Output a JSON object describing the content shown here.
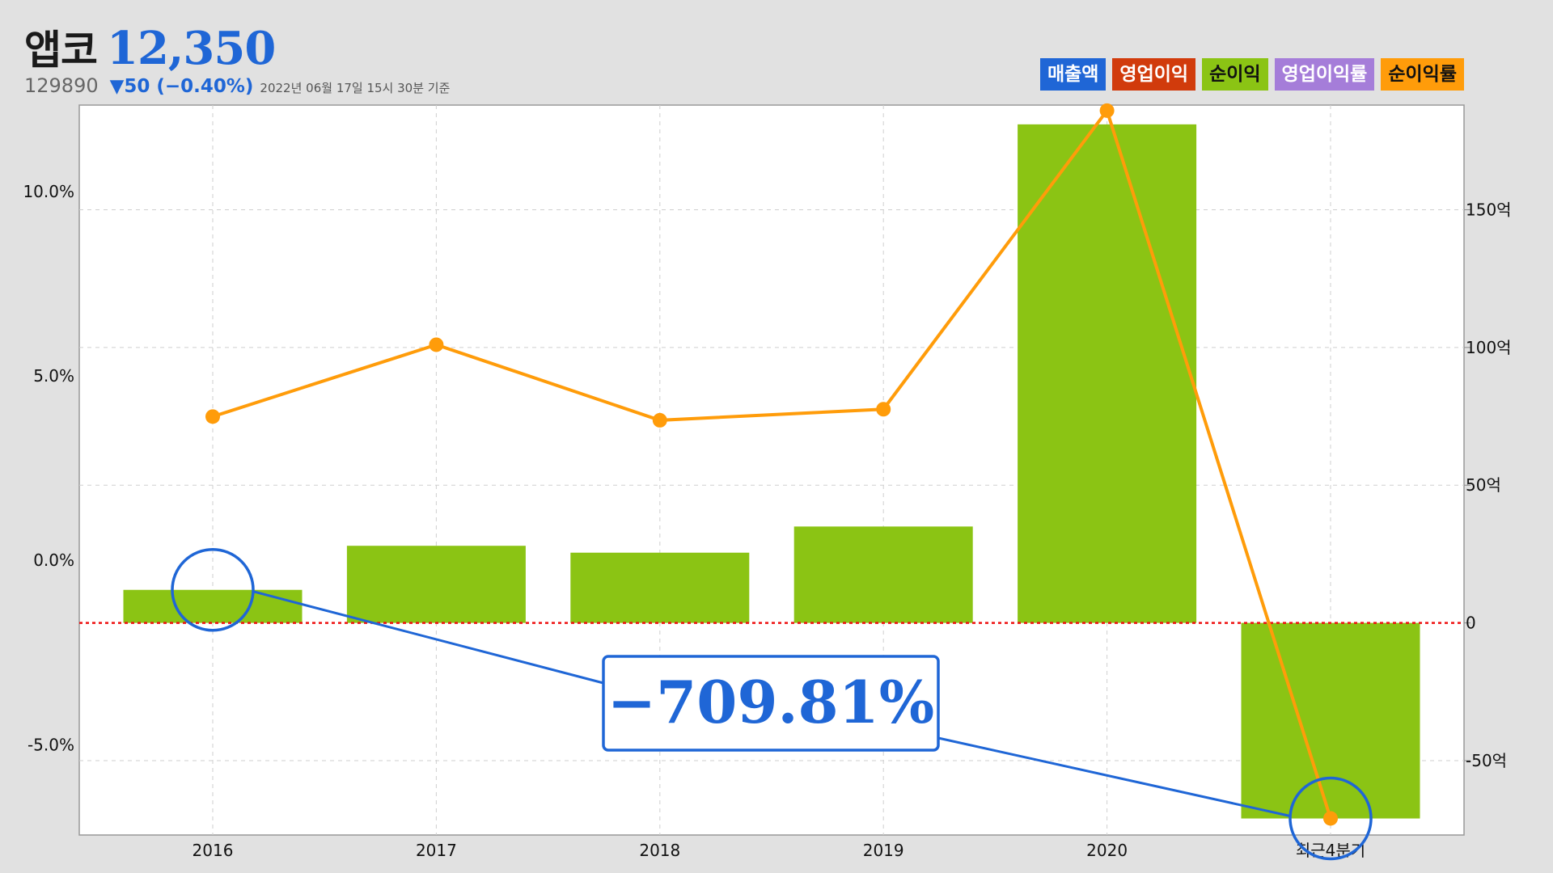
{
  "header": {
    "name": "앱코",
    "price": "12,350",
    "code": "129890",
    "change": "▼50 (−0.40%)",
    "asof": "2022년 06월 17일 15시 30분 기준"
  },
  "legend": [
    {
      "label": "매출액",
      "bg": "#1f66d6",
      "fg": "#ffffff"
    },
    {
      "label": "영업이익",
      "bg": "#d13b0c",
      "fg": "#ffffff"
    },
    {
      "label": "순이익",
      "bg": "#8bc414",
      "fg": "#111111"
    },
    {
      "label": "영업이익률",
      "bg": "#a57dd9",
      "fg": "#ffffff"
    },
    {
      "label": "순이익률",
      "bg": "#ff9c0a",
      "fg": "#111111"
    }
  ],
  "colors": {
    "bar": "#8bc414",
    "line": "#ff9c0a",
    "zero_line": "#ee1111",
    "highlight": "#1f66d6"
  },
  "chart_data": {
    "type": "bar",
    "categories": [
      "2016",
      "2017",
      "2018",
      "2019",
      "2020",
      "최근4분기"
    ],
    "series": [
      {
        "values": [
          12,
          28,
          25.5,
          35,
          181,
          -71
        ]
      },
      {
        "values": [
          3.9,
          5.85,
          3.8,
          4.1,
          12.2,
          -7.0
        ]
      }
    ],
    "left_axis": {
      "ticks": [
        "10.0%",
        "5.0%",
        "0.0%",
        "-5.0%"
      ],
      "tick_values": [
        10,
        5,
        0,
        -5
      ],
      "range": [
        -7.45,
        12.35
      ]
    },
    "right_axis": {
      "ticks": [
        "150억",
        "100억",
        "50억",
        "0",
        "-50억"
      ],
      "tick_values": [
        150,
        100,
        50,
        0,
        -50
      ],
      "range": [
        -77,
        188
      ]
    },
    "grid": true,
    "legend": "top-right",
    "annotation": {
      "text": "−709.81%",
      "from_category": "2016",
      "to_category": "최근4분기"
    }
  }
}
